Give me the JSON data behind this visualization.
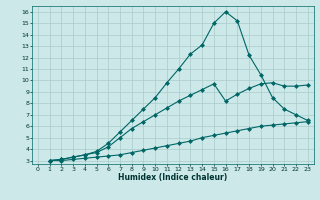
{
  "xlabel": "Humidex (Indice chaleur)",
  "ylabel": "",
  "background_color": "#cce8e8",
  "grid_color": "#aacccc",
  "line_color": "#006666",
  "xlim": [
    -0.5,
    23.5
  ],
  "ylim": [
    2.7,
    16.5
  ],
  "xticks": [
    0,
    1,
    2,
    3,
    4,
    5,
    6,
    7,
    8,
    9,
    10,
    11,
    12,
    13,
    14,
    15,
    16,
    17,
    18,
    19,
    20,
    21,
    22,
    23
  ],
  "yticks": [
    3,
    4,
    5,
    6,
    7,
    8,
    9,
    10,
    11,
    12,
    13,
    14,
    15,
    16
  ],
  "line1_x": [
    1,
    2,
    3,
    4,
    5,
    6,
    7,
    8,
    9,
    10,
    11,
    12,
    13,
    14,
    15,
    16,
    17,
    18,
    19,
    20,
    21,
    22,
    23
  ],
  "line1_y": [
    3.0,
    3.0,
    3.1,
    3.2,
    3.3,
    3.4,
    3.5,
    3.7,
    3.9,
    4.1,
    4.3,
    4.5,
    4.7,
    5.0,
    5.2,
    5.4,
    5.6,
    5.8,
    6.0,
    6.1,
    6.2,
    6.3,
    6.4
  ],
  "line2_x": [
    1,
    2,
    3,
    4,
    5,
    6,
    7,
    8,
    9,
    10,
    11,
    12,
    13,
    14,
    15,
    16,
    17,
    18,
    19,
    20,
    21,
    22,
    23
  ],
  "line2_y": [
    3.0,
    3.1,
    3.3,
    3.5,
    3.7,
    4.2,
    5.0,
    5.8,
    6.4,
    7.0,
    7.6,
    8.2,
    8.7,
    9.2,
    9.7,
    8.2,
    8.8,
    9.3,
    9.7,
    9.8,
    9.5,
    9.5,
    9.6
  ],
  "line3_x": [
    1,
    2,
    3,
    4,
    5,
    6,
    7,
    8,
    9,
    10,
    11,
    12,
    13,
    14,
    15,
    16,
    17,
    18,
    19,
    20,
    21,
    22,
    23
  ],
  "line3_y": [
    3.0,
    3.1,
    3.3,
    3.5,
    3.8,
    4.5,
    5.5,
    6.5,
    7.5,
    8.5,
    9.8,
    11.0,
    12.3,
    13.1,
    15.0,
    16.0,
    15.2,
    12.2,
    10.5,
    8.5,
    7.5,
    7.0,
    6.5
  ]
}
